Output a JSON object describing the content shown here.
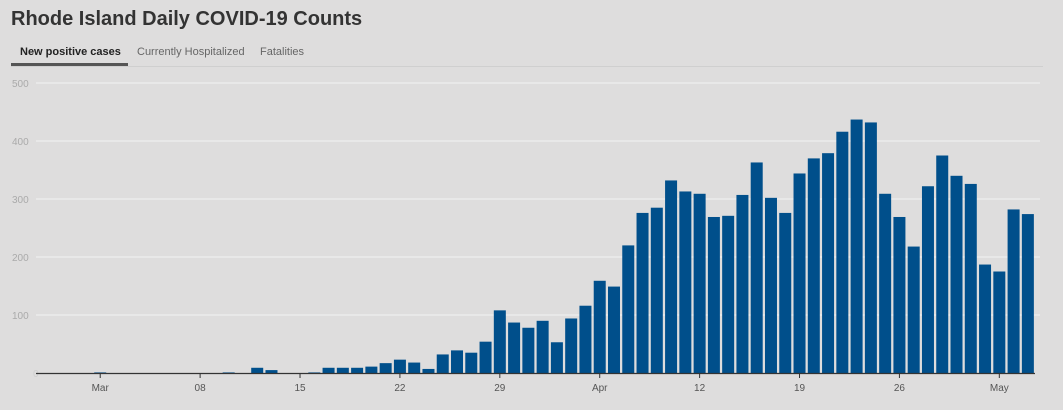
{
  "title": "Rhode Island Daily COVID-19 Counts",
  "tabs": [
    {
      "label": "New positive cases",
      "active": true
    },
    {
      "label": "Currently Hospitalized",
      "active": false
    },
    {
      "label": "Fatalities",
      "active": false
    }
  ],
  "colors": {
    "bar": "#004f8b",
    "background": "#dedddd",
    "grid": "#ebebeb",
    "axis": "#333333"
  },
  "chart_data": {
    "type": "bar",
    "title": "Rhode Island Daily COVID-19 Counts",
    "xlabel": "",
    "ylabel": "",
    "ylim": [
      0,
      500
    ],
    "yticks": [
      0,
      100,
      200,
      300,
      400,
      500
    ],
    "grid": true,
    "categories": [
      "Feb 26",
      "Feb 27",
      "Feb 28",
      "Feb 29",
      "Mar 1",
      "Mar 2",
      "Mar 3",
      "Mar 4",
      "Mar 5",
      "Mar 6",
      "Mar 7",
      "Mar 8",
      "Mar 9",
      "Mar 10",
      "Mar 11",
      "Mar 12",
      "Mar 13",
      "Mar 14",
      "Mar 15",
      "Mar 16",
      "Mar 17",
      "Mar 18",
      "Mar 19",
      "Mar 20",
      "Mar 21",
      "Mar 22",
      "Mar 23",
      "Mar 24",
      "Mar 25",
      "Mar 26",
      "Mar 27",
      "Mar 28",
      "Mar 29",
      "Mar 30",
      "Mar 31",
      "Apr 1",
      "Apr 2",
      "Apr 3",
      "Apr 4",
      "Apr 5",
      "Apr 6",
      "Apr 7",
      "Apr 8",
      "Apr 9",
      "Apr 10",
      "Apr 11",
      "Apr 12",
      "Apr 13",
      "Apr 14",
      "Apr 15",
      "Apr 16",
      "Apr 17",
      "Apr 18",
      "Apr 19",
      "Apr 20",
      "Apr 21",
      "Apr 22",
      "Apr 23",
      "Apr 24",
      "Apr 25",
      "Apr 26",
      "Apr 27",
      "Apr 28",
      "Apr 29",
      "Apr 30",
      "May 1",
      "May 2",
      "May 3",
      "May 4",
      "May 5"
    ],
    "values": [
      0,
      0,
      0,
      0,
      1,
      0,
      0,
      0,
      0,
      0,
      0,
      0,
      0,
      1,
      0,
      9,
      5,
      0,
      0,
      1,
      9,
      9,
      9,
      11,
      17,
      23,
      18,
      7,
      32,
      39,
      35,
      54,
      108,
      87,
      78,
      90,
      53,
      94,
      116,
      159,
      149,
      220,
      276,
      285,
      332,
      313,
      309,
      269,
      271,
      307,
      363,
      302,
      276,
      344,
      370,
      379,
      416,
      437,
      432,
      309,
      269,
      218,
      322,
      375,
      340,
      326,
      187,
      175,
      282,
      274
    ],
    "xticks": [
      {
        "date": "Mar 1",
        "label": "Mar"
      },
      {
        "date": "Mar 8",
        "label": "08"
      },
      {
        "date": "Mar 15",
        "label": "15"
      },
      {
        "date": "Mar 22",
        "label": "22"
      },
      {
        "date": "Mar 29",
        "label": "29"
      },
      {
        "date": "Apr 5",
        "label": "Apr"
      },
      {
        "date": "Apr 12",
        "label": "12"
      },
      {
        "date": "Apr 19",
        "label": "19"
      },
      {
        "date": "Apr 26",
        "label": "26"
      },
      {
        "date": "May 3",
        "label": "May"
      }
    ]
  }
}
